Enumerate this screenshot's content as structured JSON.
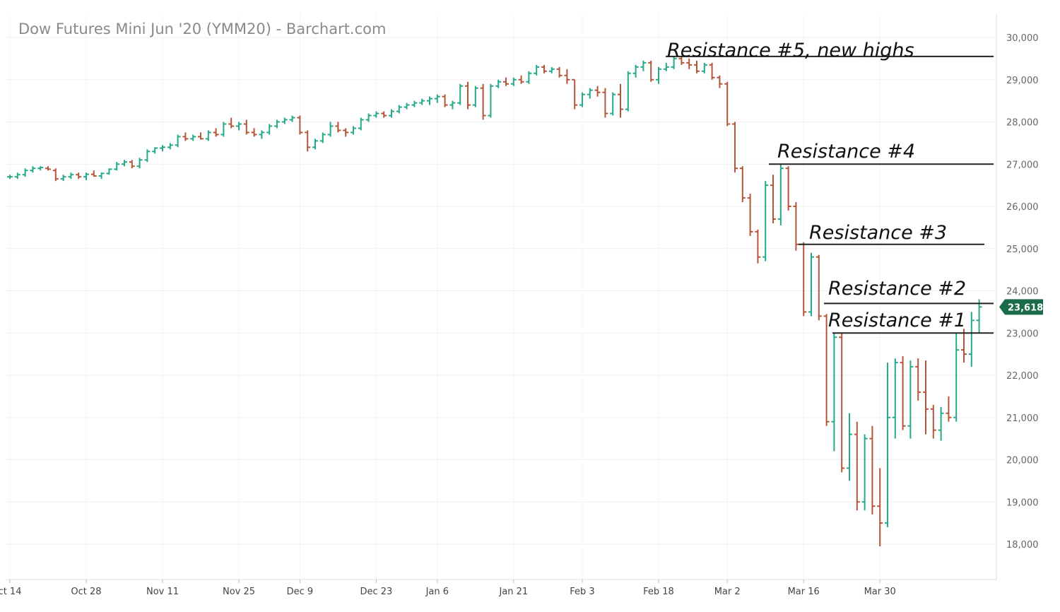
{
  "chart_data": {
    "type": "ohlc",
    "title": "Dow Futures Mini Jun '20 (YMM20) - Barchart.com",
    "ylim": [
      17600,
      30400
    ],
    "y_ticks": [
      {
        "value": 18000,
        "label": "18,000"
      },
      {
        "value": 19000,
        "label": "19,000"
      },
      {
        "value": 20000,
        "label": "20,000"
      },
      {
        "value": 21000,
        "label": "21,000"
      },
      {
        "value": 22000,
        "label": "22,000"
      },
      {
        "value": 23000,
        "label": "23,000"
      },
      {
        "value": 24000,
        "label": "24,000"
      },
      {
        "value": 25000,
        "label": "25,000"
      },
      {
        "value": 26000,
        "label": "26,000"
      },
      {
        "value": 27000,
        "label": "27,000"
      },
      {
        "value": 28000,
        "label": "28,000"
      },
      {
        "value": 29000,
        "label": "29,000"
      },
      {
        "value": 30000,
        "label": "30,000"
      }
    ],
    "x_ticks": [
      {
        "index": 0,
        "label": "ct 14"
      },
      {
        "index": 10,
        "label": "Oct 28"
      },
      {
        "index": 20,
        "label": "Nov 11"
      },
      {
        "index": 30,
        "label": "Nov 25"
      },
      {
        "index": 38,
        "label": "Dec 9"
      },
      {
        "index": 48,
        "label": "Dec 23"
      },
      {
        "index": 56,
        "label": "Jan 6"
      },
      {
        "index": 66,
        "label": "Jan 21"
      },
      {
        "index": 75,
        "label": "Feb 3"
      },
      {
        "index": 85,
        "label": "Feb 18"
      },
      {
        "index": 94,
        "label": "Mar 2"
      },
      {
        "index": 104,
        "label": "Mar 16"
      },
      {
        "index": 114,
        "label": "Mar 30"
      }
    ],
    "last_price": {
      "value": 23618,
      "label": "23,618"
    },
    "colors": {
      "up": "#26a98b",
      "down": "#b5553a",
      "badge": "#1a6b4a",
      "annotation": "#222222"
    },
    "bars": [
      [
        26700,
        26750,
        26650,
        26700
      ],
      [
        26700,
        26800,
        26650,
        26750
      ],
      [
        26750,
        26900,
        26700,
        26850
      ],
      [
        26850,
        26950,
        26800,
        26900
      ],
      [
        26900,
        26950,
        26850,
        26920
      ],
      [
        26900,
        26950,
        26850,
        26880
      ],
      [
        26850,
        26900,
        26600,
        26650
      ],
      [
        26650,
        26750,
        26600,
        26700
      ],
      [
        26700,
        26800,
        26650,
        26750
      ],
      [
        26750,
        26800,
        26650,
        26700
      ],
      [
        26700,
        26800,
        26620,
        26760
      ],
      [
        26760,
        26850,
        26700,
        26720
      ],
      [
        26720,
        26800,
        26650,
        26780
      ],
      [
        26780,
        26900,
        26750,
        26880
      ],
      [
        26880,
        27050,
        26850,
        27000
      ],
      [
        27000,
        27100,
        26950,
        27050
      ],
      [
        27050,
        27100,
        26900,
        26950
      ],
      [
        26950,
        27150,
        26900,
        27100
      ],
      [
        27100,
        27350,
        27050,
        27300
      ],
      [
        27300,
        27400,
        27250,
        27380
      ],
      [
        27380,
        27450,
        27300,
        27400
      ],
      [
        27400,
        27500,
        27350,
        27450
      ],
      [
        27450,
        27700,
        27400,
        27650
      ],
      [
        27650,
        27750,
        27550,
        27600
      ],
      [
        27600,
        27700,
        27550,
        27650
      ],
      [
        27650,
        27750,
        27580,
        27600
      ],
      [
        27600,
        27800,
        27550,
        27750
      ],
      [
        27750,
        27850,
        27650,
        27700
      ],
      [
        27700,
        28000,
        27650,
        27950
      ],
      [
        27950,
        28100,
        27850,
        27900
      ],
      [
        27900,
        28000,
        27800,
        27950
      ],
      [
        27950,
        28050,
        27700,
        27750
      ],
      [
        27750,
        27850,
        27650,
        27700
      ],
      [
        27700,
        27800,
        27600,
        27750
      ],
      [
        27750,
        27950,
        27700,
        27900
      ],
      [
        27900,
        28050,
        27850,
        28000
      ],
      [
        28000,
        28100,
        27950,
        28050
      ],
      [
        28050,
        28150,
        28000,
        28100
      ],
      [
        28100,
        28150,
        27700,
        27750
      ],
      [
        27750,
        27800,
        27300,
        27400
      ],
      [
        27400,
        27600,
        27350,
        27550
      ],
      [
        27550,
        27750,
        27500,
        27700
      ],
      [
        27700,
        28000,
        27650,
        27900
      ],
      [
        27900,
        28000,
        27750,
        27800
      ],
      [
        27800,
        27850,
        27650,
        27750
      ],
      [
        27750,
        27900,
        27700,
        27850
      ],
      [
        27850,
        28100,
        27800,
        28050
      ],
      [
        28050,
        28200,
        28000,
        28150
      ],
      [
        28150,
        28250,
        28100,
        28200
      ],
      [
        28200,
        28250,
        28100,
        28150
      ],
      [
        28150,
        28300,
        28100,
        28250
      ],
      [
        28250,
        28400,
        28200,
        28350
      ],
      [
        28350,
        28450,
        28300,
        28400
      ],
      [
        28400,
        28500,
        28350,
        28450
      ],
      [
        28450,
        28550,
        28400,
        28500
      ],
      [
        28500,
        28600,
        28400,
        28550
      ],
      [
        28550,
        28650,
        28450,
        28600
      ],
      [
        28600,
        28650,
        28350,
        28400
      ],
      [
        28400,
        28500,
        28300,
        28450
      ],
      [
        28450,
        28900,
        28400,
        28850
      ],
      [
        28850,
        28950,
        28300,
        28400
      ],
      [
        28400,
        28850,
        28350,
        28800
      ],
      [
        28800,
        28900,
        28050,
        28150
      ],
      [
        28150,
        28900,
        28100,
        28850
      ],
      [
        28850,
        29000,
        28800,
        28950
      ],
      [
        28950,
        29050,
        28850,
        28900
      ],
      [
        28900,
        29050,
        28850,
        29000
      ],
      [
        29000,
        29100,
        28900,
        28950
      ],
      [
        28950,
        29200,
        28900,
        29150
      ],
      [
        29150,
        29350,
        29100,
        29300
      ],
      [
        29300,
        29350,
        29150,
        29200
      ],
      [
        29200,
        29300,
        29150,
        29250
      ],
      [
        29250,
        29300,
        29050,
        29100
      ],
      [
        29100,
        29250,
        28900,
        29000
      ],
      [
        29000,
        29000,
        28300,
        28400
      ],
      [
        28400,
        28700,
        28350,
        28650
      ],
      [
        28650,
        28800,
        28550,
        28750
      ],
      [
        28750,
        28850,
        28600,
        28700
      ],
      [
        28700,
        28800,
        28100,
        28200
      ],
      [
        28200,
        28700,
        28150,
        28650
      ],
      [
        28650,
        28900,
        28100,
        28300
      ],
      [
        28300,
        29200,
        28250,
        29150
      ],
      [
        29150,
        29350,
        29050,
        29300
      ],
      [
        29300,
        29450,
        29200,
        29400
      ],
      [
        29400,
        29450,
        28950,
        29000
      ],
      [
        29000,
        29300,
        28900,
        29250
      ],
      [
        29250,
        29400,
        29200,
        29300
      ],
      [
        29300,
        29550,
        29250,
        29500
      ],
      [
        29500,
        29550,
        29350,
        29400
      ],
      [
        29400,
        29500,
        29250,
        29350
      ],
      [
        29350,
        29450,
        29150,
        29200
      ],
      [
        29200,
        29400,
        29150,
        29350
      ],
      [
        29350,
        29400,
        29000,
        29050
      ],
      [
        29050,
        29100,
        28800,
        28900
      ],
      [
        28900,
        28950,
        27900,
        27950
      ],
      [
        27950,
        28000,
        26800,
        26900
      ],
      [
        26900,
        26950,
        26100,
        26200
      ],
      [
        26200,
        26300,
        25300,
        25400
      ],
      [
        25400,
        25450,
        24650,
        24800
      ],
      [
        24800,
        26600,
        24700,
        26500
      ],
      [
        26500,
        26750,
        25600,
        25700
      ],
      [
        25700,
        27000,
        25550,
        26900
      ],
      [
        26900,
        26950,
        25900,
        26000
      ],
      [
        26000,
        26100,
        24950,
        25100
      ],
      [
        25100,
        25150,
        23400,
        23500
      ],
      [
        23500,
        24900,
        23400,
        24800
      ],
      [
        24800,
        24850,
        23300,
        23400
      ],
      [
        23400,
        23450,
        20800,
        20900
      ],
      [
        20900,
        23000,
        20200,
        22900
      ],
      [
        22900,
        23000,
        19700,
        19800
      ],
      [
        19800,
        21100,
        19500,
        20600
      ],
      [
        20600,
        20900,
        18800,
        19000
      ],
      [
        19000,
        20600,
        18800,
        20500
      ],
      [
        20500,
        20800,
        18700,
        18900
      ],
      [
        18900,
        19800,
        17950,
        18500
      ],
      [
        18500,
        22300,
        18400,
        21000
      ],
      [
        21000,
        22400,
        20500,
        22300
      ],
      [
        22300,
        22450,
        20700,
        20800
      ],
      [
        20800,
        22350,
        20500,
        22200
      ],
      [
        22200,
        22400,
        21400,
        21600
      ],
      [
        21600,
        22350,
        20600,
        21200
      ],
      [
        21200,
        21300,
        20500,
        20700
      ],
      [
        20700,
        21250,
        20450,
        21100
      ],
      [
        21100,
        21500,
        20900,
        21000
      ],
      [
        21000,
        23000,
        20900,
        22600
      ],
      [
        22600,
        23100,
        22300,
        22500
      ],
      [
        22500,
        23500,
        22200,
        23300
      ],
      [
        23300,
        23800,
        23000,
        23618
      ]
    ],
    "annotations": [
      {
        "text": "Resistance #5, new highs",
        "level": 29550
      },
      {
        "text": "Resistance #4",
        "level": 27000
      },
      {
        "text": "Resistance #3",
        "level": 25100
      },
      {
        "text": "Resistance #2",
        "level": 23700
      },
      {
        "text": "Resistance #1",
        "level": 23000
      }
    ]
  }
}
